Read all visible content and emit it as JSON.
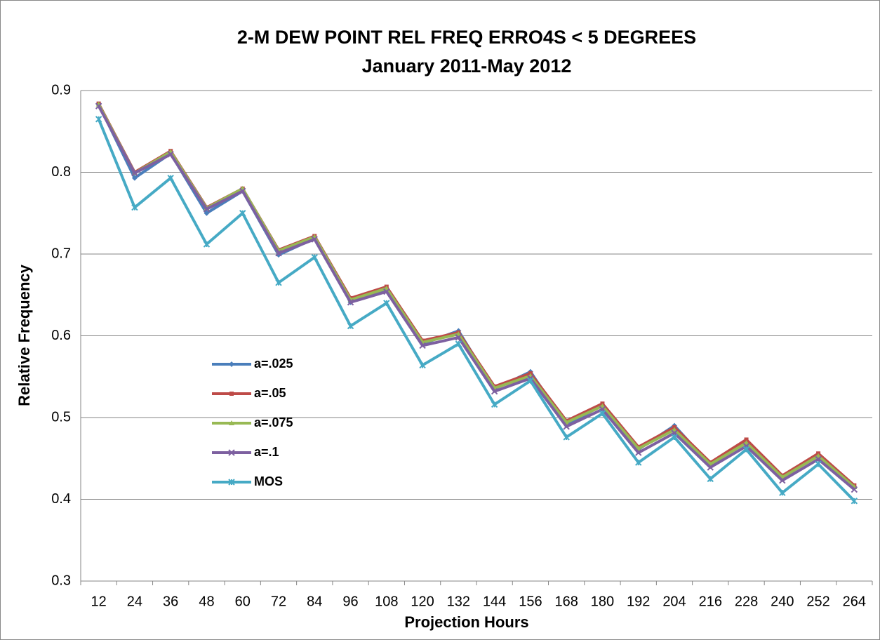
{
  "chart_data": {
    "type": "line",
    "title": "2-M DEW POINT REL FREQ ERRO4S < 5 DEGREES",
    "subtitle": "January 2011-May 2012",
    "x_label": "Projection Hours",
    "y_label": "Relative Frequency",
    "categories": [
      12,
      24,
      36,
      48,
      60,
      72,
      84,
      96,
      108,
      120,
      132,
      144,
      156,
      168,
      180,
      192,
      204,
      216,
      228,
      240,
      252,
      264
    ],
    "ylim": [
      0.3,
      0.9
    ],
    "yticks": [
      0.3,
      0.4,
      0.5,
      0.6,
      0.7,
      0.8,
      0.9
    ],
    "grid": true,
    "series": [
      {
        "name": "a=.025",
        "color": "#4a7ebb",
        "values": [
          0.883,
          0.793,
          0.823,
          0.75,
          0.777,
          0.699,
          0.719,
          0.641,
          0.656,
          0.59,
          0.606,
          0.535,
          0.556,
          0.491,
          0.515,
          0.461,
          0.49,
          0.442,
          0.471,
          0.426,
          0.455,
          0.414
        ]
      },
      {
        "name": "a=.05",
        "color": "#be4b48",
        "values": [
          0.884,
          0.8,
          0.826,
          0.757,
          0.78,
          0.705,
          0.722,
          0.646,
          0.66,
          0.594,
          0.604,
          0.538,
          0.554,
          0.496,
          0.517,
          0.464,
          0.488,
          0.445,
          0.473,
          0.429,
          0.456,
          0.417
        ]
      },
      {
        "name": "a=.075",
        "color": "#98b954",
        "values": [
          0.883,
          0.799,
          0.825,
          0.756,
          0.78,
          0.704,
          0.721,
          0.644,
          0.658,
          0.592,
          0.602,
          0.536,
          0.551,
          0.494,
          0.514,
          0.462,
          0.485,
          0.443,
          0.469,
          0.427,
          0.453,
          0.415
        ]
      },
      {
        "name": "a=.1",
        "color": "#7d60a0",
        "values": [
          0.881,
          0.799,
          0.822,
          0.755,
          0.777,
          0.701,
          0.718,
          0.641,
          0.654,
          0.588,
          0.598,
          0.532,
          0.548,
          0.489,
          0.51,
          0.457,
          0.481,
          0.439,
          0.465,
          0.423,
          0.449,
          0.412
        ]
      },
      {
        "name": "MOS",
        "color": "#46aac5",
        "values": [
          0.865,
          0.757,
          0.793,
          0.712,
          0.75,
          0.665,
          0.696,
          0.612,
          0.64,
          0.564,
          0.59,
          0.516,
          0.545,
          0.476,
          0.505,
          0.445,
          0.476,
          0.425,
          0.461,
          0.408,
          0.443,
          0.398
        ]
      }
    ]
  }
}
